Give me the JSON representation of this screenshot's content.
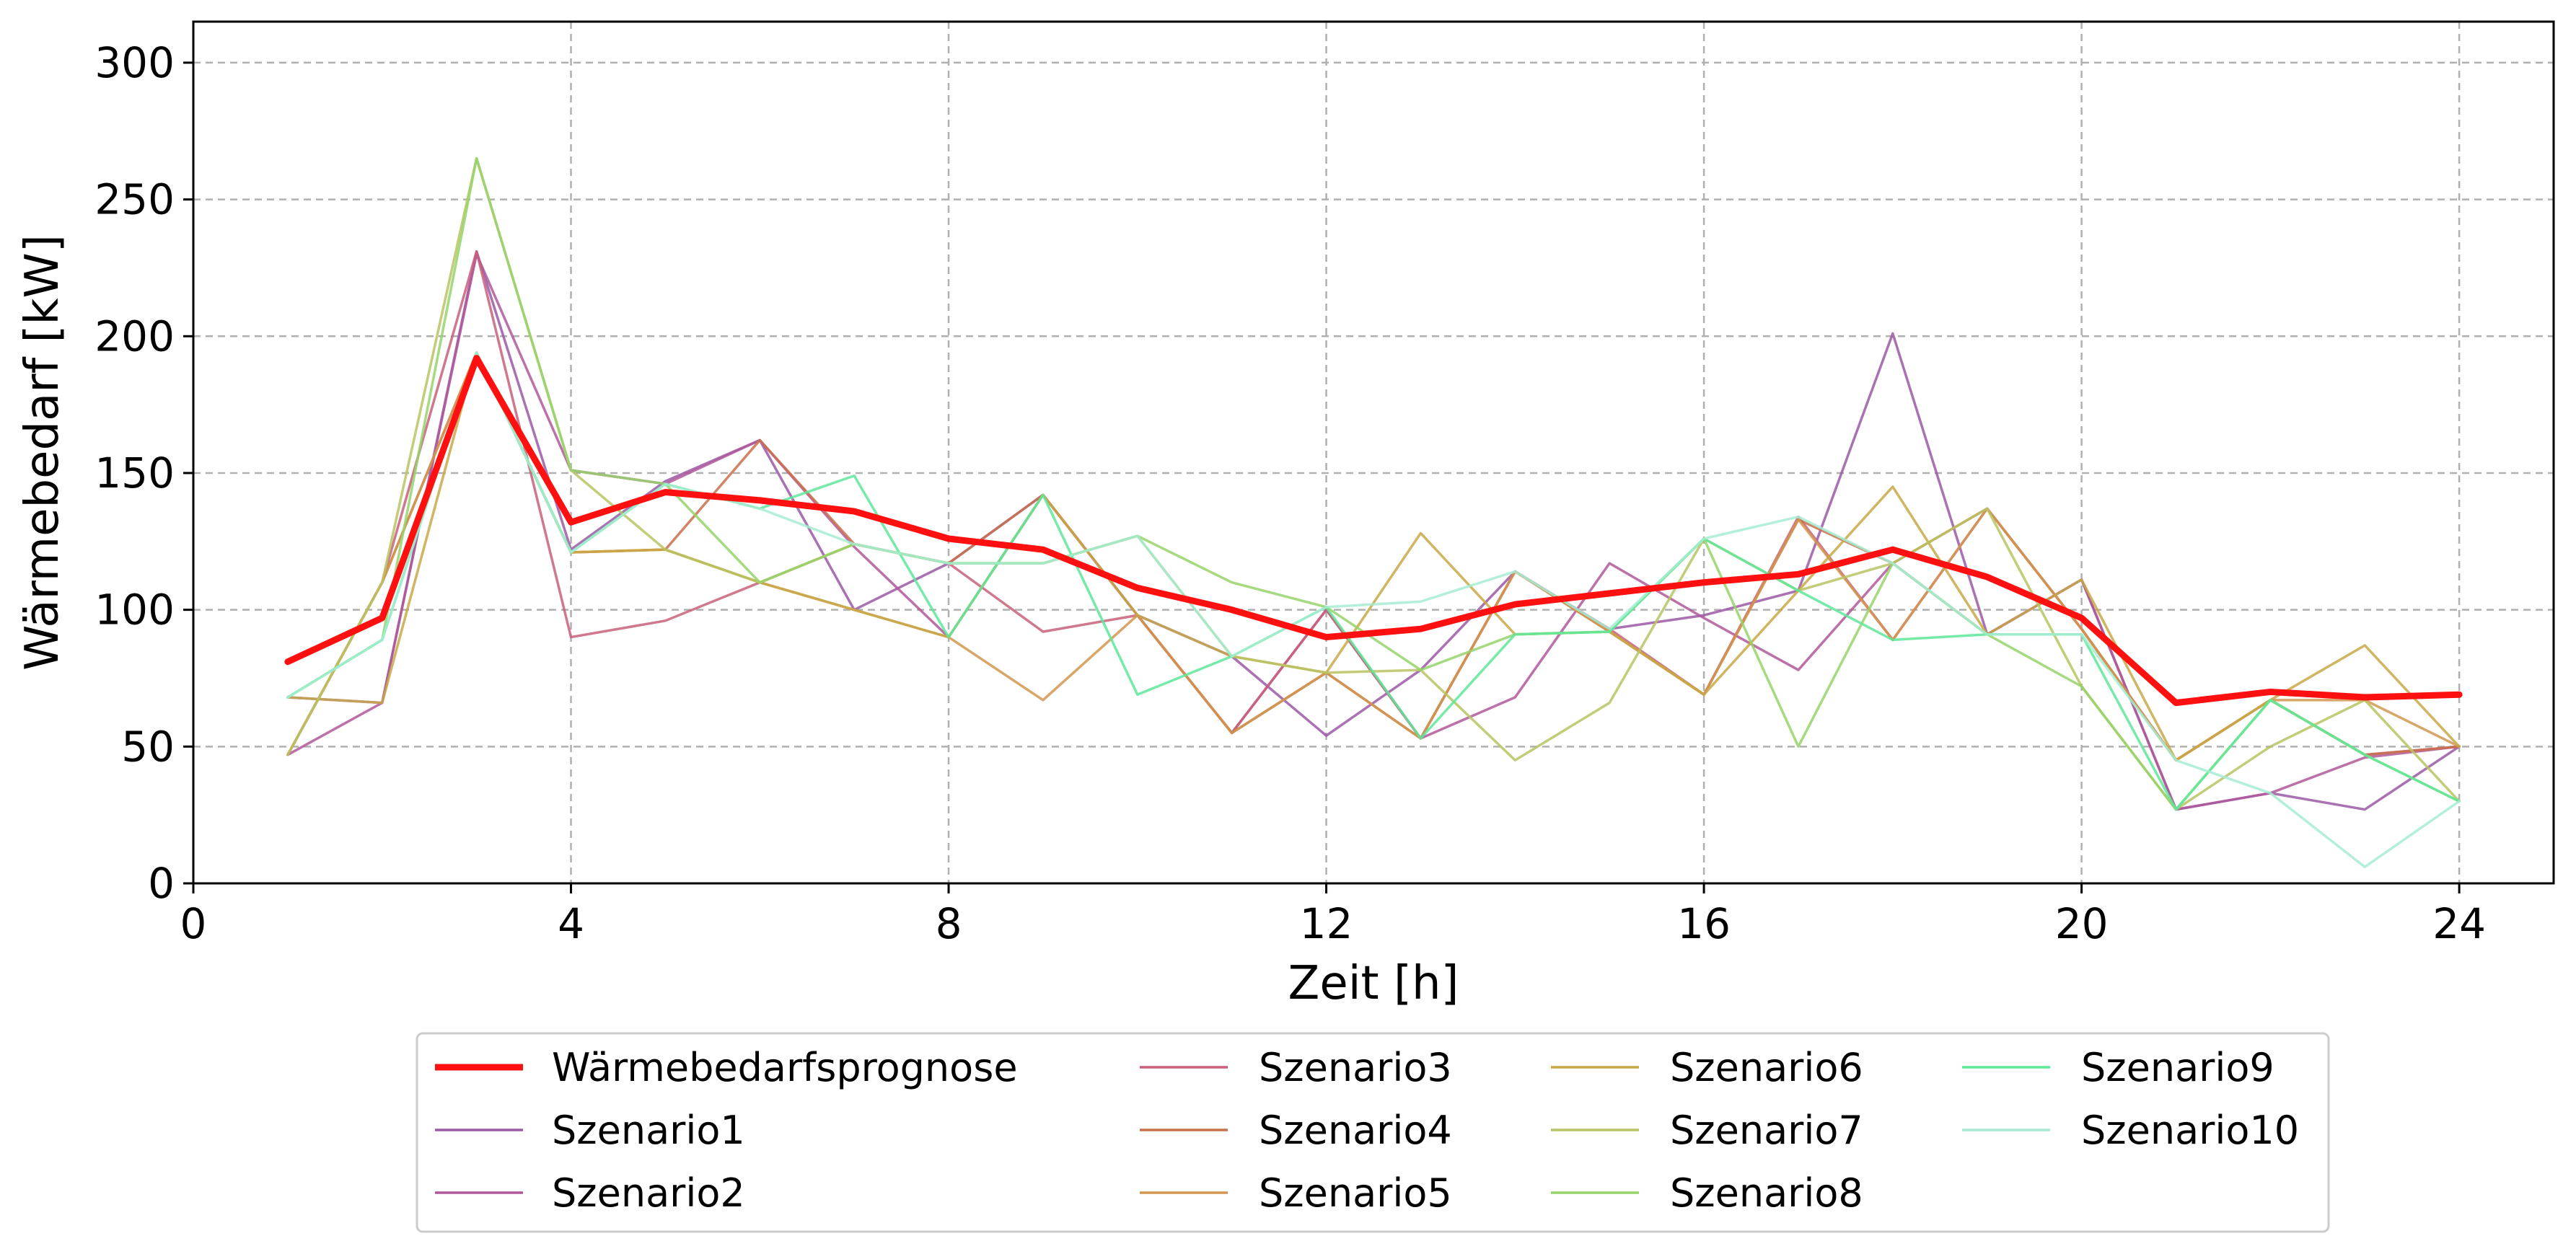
{
  "chart_data": {
    "type": "line",
    "xlabel": "Zeit [h]",
    "ylabel": "Wärmebedarf [kW]",
    "xlim": [
      0,
      25
    ],
    "ylim": [
      0,
      315
    ],
    "xticks": [
      0,
      4,
      8,
      12,
      16,
      20,
      24
    ],
    "yticks": [
      0,
      50,
      100,
      150,
      200,
      250,
      300
    ],
    "grid": true,
    "legend_position": "bottom-center",
    "legend_columns": 4,
    "x": [
      1,
      2,
      3,
      4,
      5,
      6,
      7,
      8,
      9,
      10,
      11,
      12,
      13,
      14,
      15,
      16,
      17,
      18,
      19,
      20,
      21,
      22,
      23,
      24
    ],
    "series": [
      {
        "name": "Szenario1",
        "color": "#9b59a6",
        "values": [
          68,
          66,
          231,
          122,
          147,
          162,
          100,
          117,
          142,
          98,
          83,
          54,
          78,
          114,
          93,
          98,
          107,
          201,
          91,
          111,
          27,
          33,
          27,
          50
        ]
      },
      {
        "name": "Szenario2",
        "color": "#b0589a",
        "values": [
          47,
          66,
          230,
          151,
          146,
          162,
          123,
          90,
          142,
          98,
          55,
          100,
          53,
          68,
          117,
          97,
          78,
          117,
          91,
          111,
          27,
          33,
          46,
          50
        ]
      },
      {
        "name": "Szenario3",
        "color": "#c8607a",
        "values": [
          47,
          110,
          231,
          90,
          96,
          110,
          124,
          117,
          92,
          98,
          55,
          100,
          53,
          114,
          93,
          69,
          134,
          89,
          137,
          93,
          45,
          67,
          47,
          50
        ]
      },
      {
        "name": "Szenario4",
        "color": "#c8704c",
        "values": [
          47,
          110,
          194,
          121,
          122,
          162,
          124,
          117,
          142,
          98,
          55,
          77,
          53,
          114,
          92,
          69,
          133,
          117,
          137,
          93,
          45,
          67,
          47,
          50
        ]
      },
      {
        "name": "Szenario5",
        "color": "#d29650",
        "values": [
          47,
          110,
          194,
          121,
          122,
          110,
          100,
          90,
          67,
          98,
          55,
          77,
          53,
          114,
          92,
          69,
          133,
          89,
          137,
          93,
          45,
          67,
          67,
          50
        ]
      },
      {
        "name": "Szenario6",
        "color": "#c8a846",
        "values": [
          68,
          66,
          194,
          121,
          122,
          110,
          100,
          90,
          142,
          98,
          83,
          77,
          128,
          91,
          92,
          69,
          107,
          145,
          91,
          111,
          45,
          67,
          87,
          50
        ]
      },
      {
        "name": "Szenario7",
        "color": "#b8c462",
        "values": [
          47,
          110,
          265,
          151,
          122,
          110,
          124,
          117,
          117,
          127,
          83,
          77,
          78,
          45,
          66,
          126,
          107,
          117,
          137,
          72,
          27,
          50,
          67,
          30
        ]
      },
      {
        "name": "Szenario8",
        "color": "#96d46a",
        "values": [
          68,
          89,
          265,
          151,
          146,
          110,
          124,
          117,
          117,
          127,
          110,
          101,
          78,
          91,
          92,
          126,
          50,
          117,
          91,
          72,
          27,
          67,
          47,
          30
        ]
      },
      {
        "name": "Szenario9",
        "color": "#5ee89a",
        "values": [
          68,
          89,
          194,
          121,
          146,
          137,
          149,
          90,
          142,
          69,
          83,
          101,
          53,
          91,
          92,
          126,
          107,
          89,
          91,
          91,
          27,
          67,
          47,
          30
        ]
      },
      {
        "name": "Szenario10",
        "color": "#a6ecd2",
        "values": [
          68,
          89,
          194,
          121,
          146,
          137,
          124,
          117,
          117,
          127,
          83,
          101,
          103,
          114,
          93,
          126,
          134,
          117,
          91,
          91,
          45,
          33,
          6,
          30
        ]
      },
      {
        "name": "Wärmebedarfsprognose",
        "color": "#ff1010",
        "width": 4,
        "values": [
          81,
          97,
          192,
          132,
          143,
          140,
          136,
          126,
          122,
          108,
          100,
          90,
          93,
          102,
          106,
          110,
          113,
          122,
          112,
          97,
          66,
          70,
          68,
          69
        ]
      }
    ]
  },
  "legend": {
    "columns": [
      [
        "Wärmebedarfsprognose",
        "Szenario1",
        "Szenario2"
      ],
      [
        "Szenario3",
        "Szenario4",
        "Szenario5"
      ],
      [
        "Szenario6",
        "Szenario7",
        "Szenario8"
      ],
      [
        "Szenario9",
        "Szenario10"
      ]
    ]
  }
}
